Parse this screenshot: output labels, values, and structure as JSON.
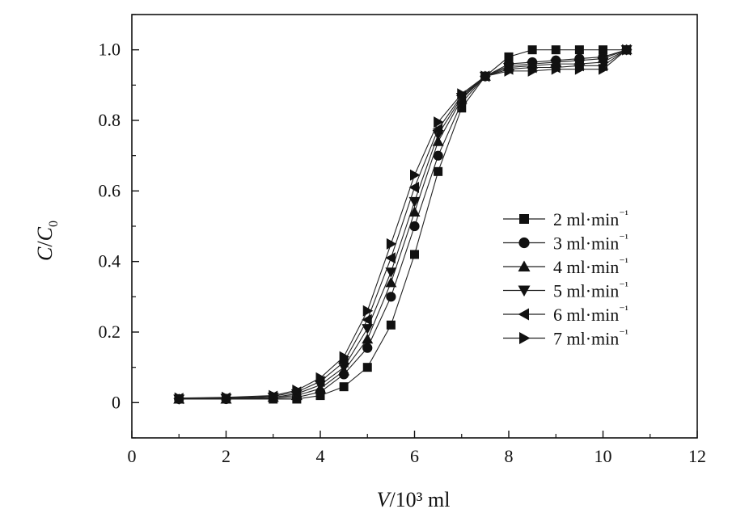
{
  "chart_data": {
    "type": "line",
    "xlabel": "V/10³ ml",
    "ylabel": "C/C0",
    "xlim": [
      0,
      12
    ],
    "ylim": [
      -0.1,
      1.1
    ],
    "x_ticks": [
      0,
      2,
      4,
      6,
      8,
      10,
      12
    ],
    "y_ticks": [
      0,
      0.2,
      0.4,
      0.6,
      0.8,
      1.0
    ],
    "x_tick_labels": [
      "0",
      "2",
      "4",
      "6",
      "8",
      "10",
      "12"
    ],
    "y_tick_labels": [
      "0",
      "0.2",
      "0.4",
      "0.6",
      "0.8",
      "1.0"
    ],
    "grid": false,
    "legend_position": "right",
    "x": [
      1,
      2,
      3,
      3.5,
      4,
      4.5,
      5,
      5.5,
      6,
      6.5,
      7,
      7.5,
      8,
      8.5,
      9,
      9.5,
      10,
      10.5
    ],
    "series": [
      {
        "name": "2 ml·min⁻¹",
        "marker": "square",
        "values": [
          0.01,
          0.01,
          0.01,
          0.01,
          0.02,
          0.045,
          0.1,
          0.22,
          0.42,
          0.655,
          0.835,
          0.925,
          0.98,
          1.0,
          1.0,
          1.0,
          1.0,
          1.0
        ]
      },
      {
        "name": "3 ml·min⁻¹",
        "marker": "circle",
        "values": [
          0.01,
          0.01,
          0.012,
          0.015,
          0.03,
          0.08,
          0.155,
          0.3,
          0.5,
          0.7,
          0.85,
          0.925,
          0.96,
          0.965,
          0.97,
          0.975,
          0.98,
          1.0
        ]
      },
      {
        "name": "4 ml·min⁻¹",
        "marker": "triangle-up",
        "values": [
          0.01,
          0.01,
          0.015,
          0.02,
          0.04,
          0.09,
          0.18,
          0.34,
          0.54,
          0.74,
          0.86,
          0.925,
          0.955,
          0.96,
          0.965,
          0.97,
          0.975,
          1.0
        ]
      },
      {
        "name": "5 ml·min⁻¹",
        "marker": "triangle-down",
        "values": [
          0.01,
          0.012,
          0.015,
          0.025,
          0.05,
          0.1,
          0.21,
          0.37,
          0.57,
          0.76,
          0.865,
          0.925,
          0.95,
          0.955,
          0.96,
          0.96,
          0.965,
          1.0
        ]
      },
      {
        "name": "6 ml·min⁻¹",
        "marker": "triangle-left",
        "values": [
          0.012,
          0.013,
          0.018,
          0.03,
          0.06,
          0.115,
          0.235,
          0.41,
          0.61,
          0.775,
          0.87,
          0.925,
          0.945,
          0.95,
          0.95,
          0.955,
          0.955,
          1.0
        ]
      },
      {
        "name": "7 ml·min⁻¹",
        "marker": "triangle-right",
        "values": [
          0.013,
          0.015,
          0.02,
          0.035,
          0.07,
          0.13,
          0.26,
          0.45,
          0.645,
          0.795,
          0.875,
          0.925,
          0.94,
          0.94,
          0.945,
          0.945,
          0.945,
          1.0
        ]
      }
    ]
  }
}
